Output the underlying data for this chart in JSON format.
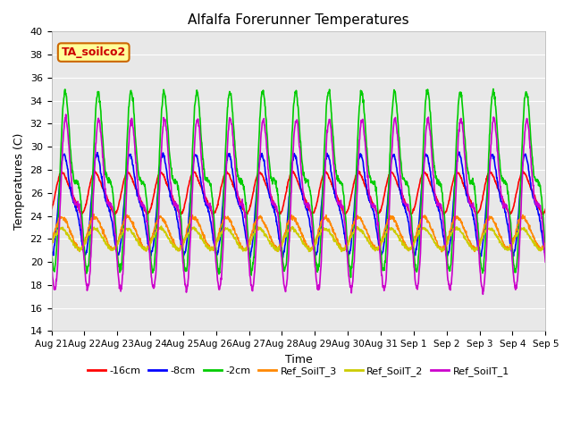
{
  "title": "Alfalfa Forerunner Temperatures",
  "xlabel": "Time",
  "ylabel": "Temperatures (C)",
  "ylim": [
    14,
    40
  ],
  "yticks": [
    14,
    16,
    18,
    20,
    22,
    24,
    26,
    28,
    30,
    32,
    34,
    36,
    38,
    40
  ],
  "legend_label": "TA_soilco2",
  "series_labels": [
    "-16cm",
    "-8cm",
    "-2cm",
    "Ref_SoilT_3",
    "Ref_SoilT_2",
    "Ref_SoilT_1"
  ],
  "series_colors": [
    "#ff0000",
    "#0000ff",
    "#00cc00",
    "#ff8800",
    "#cccc00",
    "#cc00cc"
  ],
  "n_days": 15,
  "points_per_day": 96,
  "background_color": "#e8e8e8",
  "xtick_labels": [
    "Aug 21",
    "Aug 22",
    "Aug 23",
    "Aug 24",
    "Aug 25",
    "Aug 26",
    "Aug 27",
    "Aug 28",
    "Aug 29",
    "Aug 30",
    "Aug 31",
    "Sep 1",
    "Sep 2",
    "Sep 3",
    "Sep 4",
    "Sep 5"
  ]
}
